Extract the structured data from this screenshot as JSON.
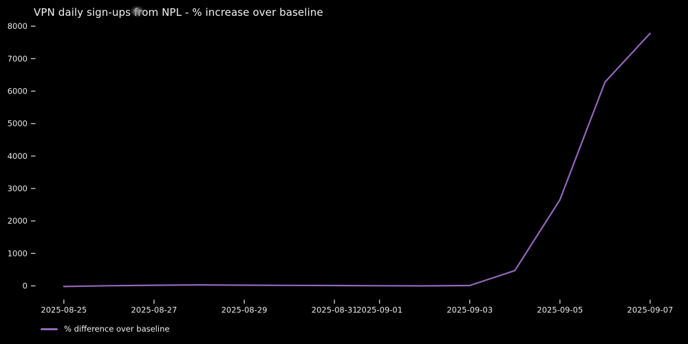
{
  "chart_data": {
    "type": "line",
    "title": "VPN daily sign-ups from NPL - % increase over baseline",
    "xlabel": "",
    "ylabel": "",
    "x": [
      "2025-08-25",
      "2025-08-26",
      "2025-08-27",
      "2025-08-28",
      "2025-08-29",
      "2025-08-30",
      "2025-08-31",
      "2025-09-01",
      "2025-09-02",
      "2025-09-03",
      "2025-09-04",
      "2025-09-05",
      "2025-09-06",
      "2025-09-07"
    ],
    "series": [
      {
        "name": "% difference over baseline",
        "values": [
          -20,
          5,
          20,
          30,
          22,
          15,
          10,
          5,
          0,
          10,
          470,
          2650,
          6280,
          7780
        ]
      }
    ],
    "y_ticks": [
      0,
      1000,
      2000,
      3000,
      4000,
      5000,
      6000,
      7000,
      8000
    ],
    "ylim": [
      -350,
      8200
    ],
    "x_tick_indices": [
      0,
      2,
      4,
      6,
      7,
      9,
      11,
      13
    ],
    "x_tick_labels": [
      "2025-08-25",
      "2025-08-27",
      "2025-08-29",
      "2025-08-31",
      "2025-09-01",
      "2025-09-03",
      "2025-09-05",
      "2025-09-07"
    ],
    "grid": false,
    "legend": {
      "position": "lower-left-below-plot",
      "entries": [
        "% difference over baseline"
      ]
    },
    "colors": {
      "background": "#000000",
      "text": "#e8e8e8",
      "title_text": "#f2f2f2",
      "tick_mark": "#c8c8c8",
      "line": "#9467bd"
    }
  },
  "artifacts": {
    "mouse_cursor": "gray smudge over the word 'from' in the title"
  }
}
